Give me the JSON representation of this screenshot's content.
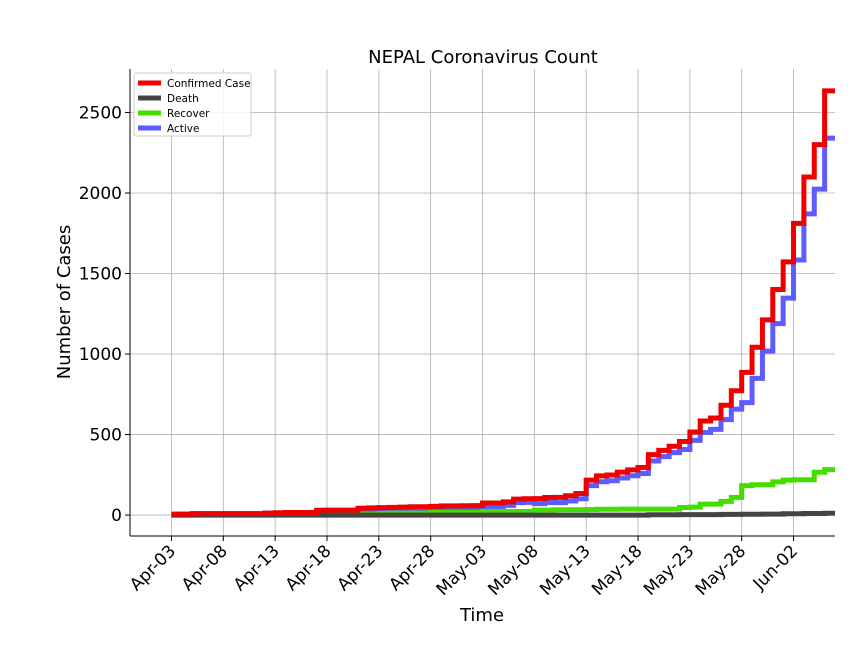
{
  "chart_data": {
    "type": "line",
    "step": true,
    "title": "NEPAL Coronavirus Count",
    "xlabel": "Time",
    "ylabel": "Number of Cases",
    "grid": true,
    "legend_position": "top-left",
    "x_range": [
      "2020-03-30",
      "2020-06-06"
    ],
    "ylim": [
      -130,
      2770
    ],
    "x_ticks": [
      "Apr-03",
      "Apr-08",
      "Apr-13",
      "Apr-18",
      "Apr-23",
      "Apr-28",
      "May-03",
      "May-08",
      "May-13",
      "May-18",
      "May-23",
      "May-28",
      "Jun-02"
    ],
    "x_tick_dates": [
      "2020-04-03",
      "2020-04-08",
      "2020-04-13",
      "2020-04-18",
      "2020-04-23",
      "2020-04-28",
      "2020-05-03",
      "2020-05-08",
      "2020-05-13",
      "2020-05-18",
      "2020-05-23",
      "2020-05-28",
      "2020-06-02"
    ],
    "y_ticks": [
      "0",
      "500",
      "1000",
      "1500",
      "2000",
      "2500"
    ],
    "y_tick_values": [
      0,
      500,
      1000,
      1500,
      2000,
      2500
    ],
    "dates": [
      "2020-04-03",
      "2020-04-04",
      "2020-04-05",
      "2020-04-06",
      "2020-04-07",
      "2020-04-08",
      "2020-04-09",
      "2020-04-10",
      "2020-04-11",
      "2020-04-12",
      "2020-04-13",
      "2020-04-14",
      "2020-04-15",
      "2020-04-16",
      "2020-04-17",
      "2020-04-18",
      "2020-04-19",
      "2020-04-20",
      "2020-04-21",
      "2020-04-22",
      "2020-04-23",
      "2020-04-24",
      "2020-04-25",
      "2020-04-26",
      "2020-04-27",
      "2020-04-28",
      "2020-04-29",
      "2020-04-30",
      "2020-05-01",
      "2020-05-02",
      "2020-05-03",
      "2020-05-04",
      "2020-05-05",
      "2020-05-06",
      "2020-05-07",
      "2020-05-08",
      "2020-05-09",
      "2020-05-10",
      "2020-05-11",
      "2020-05-12",
      "2020-05-13",
      "2020-05-14",
      "2020-05-15",
      "2020-05-16",
      "2020-05-17",
      "2020-05-18",
      "2020-05-19",
      "2020-05-20",
      "2020-05-21",
      "2020-05-22",
      "2020-05-23",
      "2020-05-24",
      "2020-05-25",
      "2020-05-26",
      "2020-05-27",
      "2020-05-28",
      "2020-05-29",
      "2020-05-30",
      "2020-05-31",
      "2020-06-01",
      "2020-06-02",
      "2020-06-03",
      "2020-06-04",
      "2020-06-05"
    ],
    "series": [
      {
        "name": "Confirmed Case",
        "color": "#ee0000",
        "values": [
          6,
          6,
          9,
          9,
          9,
          9,
          9,
          9,
          9,
          12,
          14,
          16,
          16,
          16,
          30,
          31,
          31,
          31,
          42,
          45,
          46,
          48,
          49,
          52,
          52,
          54,
          57,
          57,
          58,
          59,
          75,
          75,
          82,
          99,
          101,
          102,
          109,
          110,
          120,
          134,
          217,
          243,
          249,
          267,
          281,
          295,
          375,
          402,
          427,
          457,
          516,
          584,
          603,
          682,
          772,
          886,
          1042,
          1212,
          1401,
          1572,
          1811,
          2099,
          2300,
          2634
        ]
      },
      {
        "name": "Death",
        "color": "#444444",
        "values": [
          0,
          0,
          0,
          0,
          0,
          0,
          0,
          0,
          0,
          0,
          0,
          0,
          0,
          0,
          0,
          0,
          0,
          0,
          0,
          0,
          0,
          0,
          0,
          0,
          0,
          0,
          0,
          0,
          0,
          0,
          0,
          0,
          0,
          0,
          0,
          0,
          0,
          0,
          0,
          0,
          0,
          0,
          0,
          0,
          0,
          0,
          2,
          2,
          2,
          3,
          3,
          3,
          3,
          4,
          4,
          5,
          5,
          6,
          6,
          8,
          8,
          10,
          10,
          11
        ]
      },
      {
        "name": "Recover",
        "color": "#44dd00",
        "values": [
          0,
          0,
          1,
          1,
          1,
          1,
          1,
          1,
          1,
          1,
          1,
          1,
          1,
          3,
          3,
          4,
          4,
          7,
          7,
          7,
          10,
          12,
          12,
          12,
          12,
          16,
          16,
          16,
          16,
          16,
          22,
          22,
          22,
          22,
          22,
          31,
          31,
          33,
          33,
          33,
          34,
          36,
          36,
          37,
          37,
          37,
          37,
          37,
          37,
          47,
          49,
          68,
          68,
          85,
          110,
          183,
          188,
          188,
          206,
          217,
          219,
          219,
          266,
          282
        ]
      },
      {
        "name": "Active",
        "color": "#5c5cff",
        "values": [
          6,
          6,
          8,
          8,
          8,
          8,
          8,
          8,
          8,
          11,
          13,
          15,
          15,
          15,
          27,
          27,
          27,
          24,
          35,
          38,
          36,
          36,
          37,
          40,
          40,
          38,
          41,
          41,
          42,
          43,
          53,
          53,
          60,
          77,
          79,
          71,
          78,
          77,
          87,
          101,
          183,
          207,
          213,
          230,
          244,
          258,
          336,
          363,
          388,
          407,
          464,
          513,
          532,
          593,
          658,
          698,
          849,
          1018,
          1189,
          1347,
          1584,
          1870,
          2024,
          2341
        ]
      }
    ]
  }
}
